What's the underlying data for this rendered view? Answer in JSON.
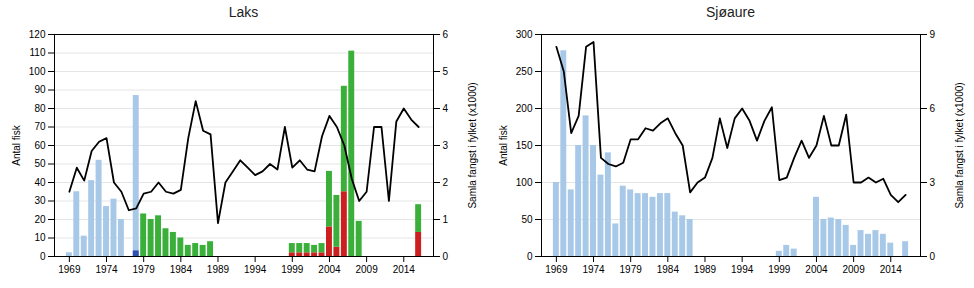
{
  "chart_data": [
    {
      "type": "bar",
      "title": "Laks",
      "x": [
        1969,
        1970,
        1971,
        1972,
        1973,
        1974,
        1975,
        1976,
        1977,
        1978,
        1979,
        1980,
        1981,
        1982,
        1983,
        1984,
        1985,
        1986,
        1987,
        1988,
        1989,
        1990,
        1991,
        1992,
        1993,
        1994,
        1995,
        1996,
        1997,
        1998,
        1999,
        2000,
        2001,
        2002,
        2003,
        2004,
        2005,
        2006,
        2007,
        2008,
        2009,
        2010,
        2011,
        2012,
        2013,
        2014,
        2015,
        2016
      ],
      "xlim": [
        1967,
        2018
      ],
      "xticks": [
        1969,
        1974,
        1979,
        1984,
        1989,
        1994,
        1999,
        2004,
        2009,
        2014
      ],
      "ylabel": "Antal fisk",
      "ylim": [
        0,
        120
      ],
      "yticks": [
        0,
        10,
        20,
        30,
        40,
        50,
        60,
        70,
        80,
        90,
        100,
        110,
        120
      ],
      "y2label": "Samla fangst i fylket (x1000)",
      "y2lim": [
        0,
        6
      ],
      "y2ticks": [
        0,
        1,
        2,
        3,
        4,
        5,
        6
      ],
      "grid": true,
      "series": [
        {
          "color": "#a8c8e8",
          "values": [
            2,
            35,
            11,
            41,
            52,
            27,
            31,
            20,
            0,
            87,
            0,
            0,
            0,
            0,
            0,
            0,
            0,
            0,
            0,
            0,
            0,
            0,
            0,
            0,
            0,
            0,
            0,
            0,
            0,
            0,
            0,
            0,
            0,
            0,
            0,
            0,
            0,
            0,
            0,
            0,
            0,
            0,
            0,
            0,
            0,
            0,
            0,
            0
          ]
        },
        {
          "color": "#cc2020",
          "values": [
            0,
            0,
            0,
            0,
            0,
            0,
            0,
            0,
            0,
            0,
            0,
            0,
            0,
            0,
            0,
            0,
            0,
            0,
            0,
            0,
            0,
            0,
            0,
            0,
            0,
            0,
            0,
            0,
            0,
            0,
            2,
            2,
            2,
            2,
            2,
            16,
            5,
            35,
            0,
            0,
            0,
            0,
            0,
            0,
            0,
            0,
            0,
            13
          ]
        },
        {
          "color": "#3ab03a",
          "stacked": true,
          "values": [
            0,
            0,
            0,
            0,
            0,
            0,
            0,
            0,
            0,
            0,
            23,
            20,
            22,
            15,
            13,
            10,
            6,
            7,
            6,
            8,
            0,
            0,
            0,
            0,
            0,
            0,
            0,
            0,
            0,
            0,
            5,
            5,
            5,
            4,
            5,
            30,
            28,
            57,
            111,
            19,
            0,
            0,
            0,
            0,
            0,
            0,
            0,
            15
          ]
        },
        {
          "color": "#3050b0",
          "values": [
            0,
            0,
            0,
            0,
            0,
            0,
            0,
            0,
            0,
            3,
            0,
            0,
            0,
            0,
            0,
            0,
            0,
            0,
            0,
            0,
            0,
            0,
            0,
            0,
            0,
            0,
            0,
            0,
            0,
            0,
            0,
            0,
            0,
            0,
            0,
            0,
            0,
            0,
            0,
            0,
            0,
            0,
            0,
            0,
            0,
            0,
            0,
            0
          ]
        },
        {
          "type": "line",
          "axis": "y2",
          "color": "#000000",
          "values": [
            1.75,
            2.4,
            2.05,
            2.85,
            3.1,
            3.2,
            2.0,
            1.75,
            1.25,
            1.3,
            1.7,
            1.75,
            2.0,
            1.75,
            1.7,
            1.8,
            3.2,
            4.2,
            3.4,
            3.3,
            0.9,
            2.0,
            2.3,
            2.6,
            2.4,
            2.2,
            2.3,
            2.5,
            2.35,
            3.5,
            2.4,
            2.6,
            2.35,
            2.3,
            3.25,
            3.8,
            3.5,
            3.0,
            2.1,
            1.5,
            1.75,
            3.5,
            3.5,
            1.5,
            3.65,
            4.0,
            3.7,
            3.5
          ]
        }
      ]
    },
    {
      "type": "bar",
      "title": "Sjøaure",
      "x": [
        1969,
        1970,
        1971,
        1972,
        1973,
        1974,
        1975,
        1976,
        1977,
        1978,
        1979,
        1980,
        1981,
        1982,
        1983,
        1984,
        1985,
        1986,
        1987,
        1988,
        1989,
        1990,
        1991,
        1992,
        1993,
        1994,
        1995,
        1996,
        1997,
        1998,
        1999,
        2000,
        2001,
        2002,
        2003,
        2004,
        2005,
        2006,
        2007,
        2008,
        2009,
        2010,
        2011,
        2012,
        2013,
        2014,
        2015,
        2016
      ],
      "xlim": [
        1967,
        2018
      ],
      "xticks": [
        1969,
        1974,
        1979,
        1984,
        1989,
        1994,
        1999,
        2004,
        2009,
        2014
      ],
      "ylabel": "Antal fisk",
      "ylim": [
        0,
        300
      ],
      "yticks": [
        0,
        50,
        100,
        150,
        200,
        250,
        300
      ],
      "y2label": "Samla fangst i fylket (x1000)",
      "y2lim": [
        0,
        9
      ],
      "y2ticks": [
        0,
        3,
        6,
        9
      ],
      "grid": true,
      "series": [
        {
          "color": "#a8c8e8",
          "values": [
            100,
            278,
            90,
            150,
            190,
            150,
            110,
            140,
            44,
            95,
            90,
            85,
            85,
            80,
            85,
            85,
            60,
            55,
            50,
            0,
            0,
            0,
            0,
            0,
            0,
            0,
            0,
            0,
            0,
            0,
            7,
            15,
            10,
            0,
            0,
            80,
            50,
            52,
            50,
            42,
            15,
            35,
            30,
            35,
            30,
            18,
            0,
            20
          ]
        },
        {
          "type": "line",
          "axis": "y2",
          "color": "#000000",
          "values": [
            8.5,
            7.5,
            5.0,
            5.7,
            8.5,
            8.7,
            4.0,
            3.75,
            3.65,
            3.8,
            4.75,
            4.75,
            5.2,
            5.1,
            5.4,
            5.6,
            5.0,
            4.5,
            2.6,
            3.0,
            3.2,
            4.0,
            5.6,
            4.4,
            5.6,
            6.0,
            5.5,
            4.7,
            5.5,
            6.05,
            3.1,
            3.2,
            4.0,
            4.7,
            4.0,
            4.5,
            5.7,
            4.5,
            4.5,
            5.75,
            3.0,
            3.0,
            3.2,
            3.0,
            3.15,
            2.5,
            2.2,
            2.5
          ]
        }
      ]
    }
  ]
}
